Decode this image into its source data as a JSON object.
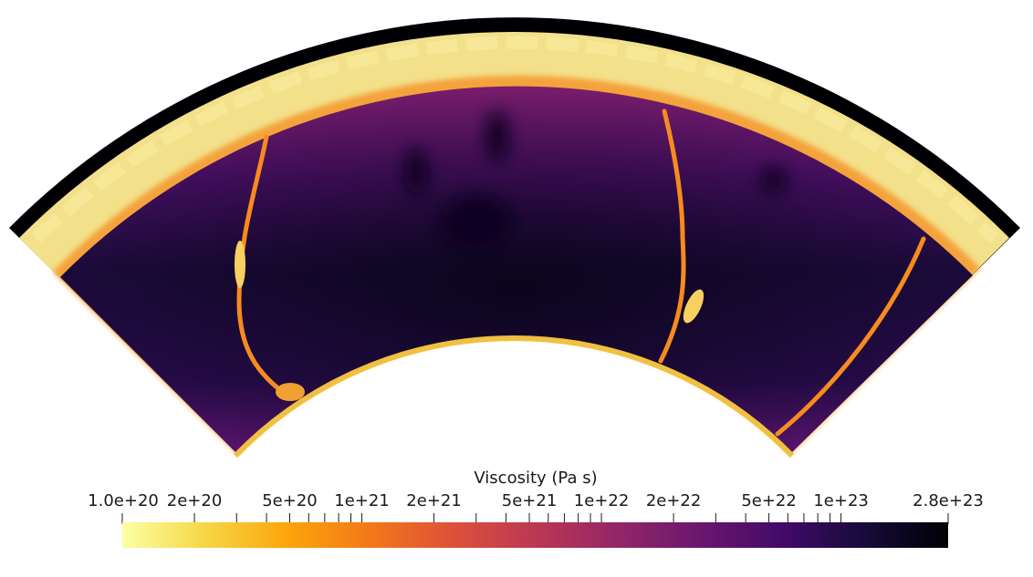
{
  "chart_data": {
    "type": "heatmap",
    "field": "Viscosity",
    "colorbar": {
      "title": "Viscosity (Pa s)",
      "scale": "log",
      "range": [
        1e+20,
        2.8e+23
      ],
      "colormap": "inferno-reversed",
      "orientation": "horizontal",
      "position": "bottom",
      "labeled_ticks": [
        {
          "value": 1e+20,
          "label": "1.0e+20"
        },
        {
          "value": 2e+20,
          "label": "2e+20"
        },
        {
          "value": 5e+20,
          "label": "5e+20"
        },
        {
          "value": 1e+21,
          "label": "1e+21"
        },
        {
          "value": 2e+21,
          "label": "2e+21"
        },
        {
          "value": 5e+21,
          "label": "5e+21"
        },
        {
          "value": 1e+22,
          "label": "1e+22"
        },
        {
          "value": 2e+22,
          "label": "2e+22"
        },
        {
          "value": 5e+22,
          "label": "5e+22"
        },
        {
          "value": 1e+23,
          "label": "1e+23"
        },
        {
          "value": 2.8e+23,
          "label": "2.8e+23"
        }
      ],
      "minor_ticks": [
        3e+20,
        4e+20,
        6e+20,
        7e+20,
        8e+20,
        9e+20,
        3e+21,
        4e+21,
        6e+21,
        7e+21,
        8e+21,
        9e+21,
        3e+22,
        4e+22,
        6e+22,
        7e+22,
        8e+22,
        9e+22
      ],
      "color_stops": [
        "#fcffa4",
        "#f6d746",
        "#fca50a",
        "#f37819",
        "#dd513a",
        "#bc3754",
        "#932667",
        "#6a176e",
        "#420a68",
        "#160b39",
        "#000004"
      ]
    },
    "domain": {
      "shape": "annular sector",
      "background_high_viscosity_color": "#000004",
      "features": [
        "stiff lithosphere band",
        "sinking slabs",
        "low-viscosity plumes"
      ]
    }
  }
}
